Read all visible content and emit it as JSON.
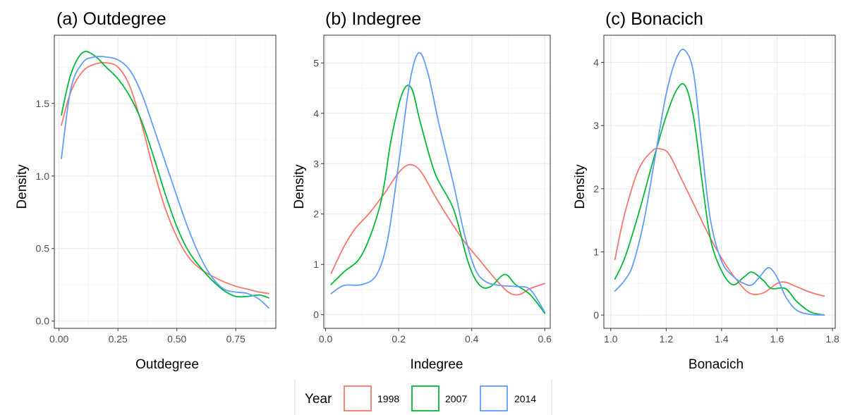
{
  "chart_data": [
    {
      "type": "line",
      "title": "(a) Outdegree",
      "xlabel": "Outdegree",
      "ylabel": "Density",
      "xlim": [
        -0.02,
        0.92
      ],
      "ylim": [
        -0.05,
        1.97
      ],
      "xticks": [
        0.0,
        0.25,
        0.5,
        0.75
      ],
      "xtick_labels": [
        "0.00",
        "0.25",
        "0.50",
        "0.75"
      ],
      "yticks": [
        0.0,
        0.5,
        1.0,
        1.5
      ],
      "ytick_labels": [
        "0.0",
        "0.5",
        "1.0",
        "1.5"
      ],
      "series": [
        {
          "name": "1998",
          "x": [
            0.01,
            0.05,
            0.1,
            0.15,
            0.2,
            0.25,
            0.3,
            0.35,
            0.4,
            0.45,
            0.5,
            0.55,
            0.6,
            0.65,
            0.7,
            0.75,
            0.8,
            0.85,
            0.89
          ],
          "y": [
            1.35,
            1.58,
            1.72,
            1.77,
            1.78,
            1.75,
            1.62,
            1.36,
            1.05,
            0.78,
            0.58,
            0.44,
            0.36,
            0.31,
            0.27,
            0.24,
            0.22,
            0.2,
            0.19
          ]
        },
        {
          "name": "2007",
          "x": [
            0.01,
            0.05,
            0.1,
            0.15,
            0.2,
            0.25,
            0.3,
            0.35,
            0.4,
            0.45,
            0.5,
            0.55,
            0.6,
            0.65,
            0.7,
            0.75,
            0.8,
            0.85,
            0.89
          ],
          "y": [
            1.42,
            1.7,
            1.85,
            1.83,
            1.75,
            1.67,
            1.55,
            1.38,
            1.14,
            0.88,
            0.65,
            0.48,
            0.37,
            0.28,
            0.21,
            0.17,
            0.17,
            0.18,
            0.16
          ]
        },
        {
          "name": "2014",
          "x": [
            0.01,
            0.05,
            0.1,
            0.15,
            0.2,
            0.25,
            0.3,
            0.35,
            0.4,
            0.45,
            0.5,
            0.55,
            0.6,
            0.65,
            0.7,
            0.75,
            0.8,
            0.85,
            0.89
          ],
          "y": [
            1.12,
            1.6,
            1.78,
            1.82,
            1.82,
            1.8,
            1.73,
            1.57,
            1.34,
            1.1,
            0.86,
            0.63,
            0.44,
            0.3,
            0.22,
            0.2,
            0.19,
            0.15,
            0.09
          ]
        }
      ]
    },
    {
      "type": "line",
      "title": "(b) Indegree",
      "xlabel": "Indegree",
      "ylabel": "Density",
      "xlim": [
        -0.005,
        0.615
      ],
      "ylim": [
        -0.27,
        5.55
      ],
      "xticks": [
        0.0,
        0.2,
        0.4,
        0.6
      ],
      "xtick_labels": [
        "0.0",
        "0.2",
        "0.4",
        "0.6"
      ],
      "yticks": [
        0,
        1,
        2,
        3,
        4,
        5
      ],
      "ytick_labels": [
        "0",
        "1",
        "2",
        "3",
        "4",
        "5"
      ],
      "series": [
        {
          "name": "1998",
          "x": [
            0.015,
            0.05,
            0.08,
            0.12,
            0.16,
            0.2,
            0.23,
            0.26,
            0.3,
            0.34,
            0.38,
            0.42,
            0.46,
            0.5,
            0.53,
            0.56,
            0.6
          ],
          "y": [
            0.82,
            1.35,
            1.7,
            2.02,
            2.4,
            2.82,
            2.98,
            2.85,
            2.35,
            1.88,
            1.45,
            1.1,
            0.75,
            0.45,
            0.4,
            0.52,
            0.62
          ]
        },
        {
          "name": "2007",
          "x": [
            0.015,
            0.05,
            0.1,
            0.15,
            0.18,
            0.21,
            0.235,
            0.26,
            0.3,
            0.35,
            0.39,
            0.42,
            0.45,
            0.49,
            0.52,
            0.56,
            0.6
          ],
          "y": [
            0.6,
            0.85,
            1.2,
            2.2,
            3.5,
            4.4,
            4.5,
            3.8,
            2.8,
            2.1,
            1.05,
            0.6,
            0.55,
            0.8,
            0.6,
            0.4,
            0.03
          ]
        },
        {
          "name": "2014",
          "x": [
            0.015,
            0.05,
            0.1,
            0.14,
            0.17,
            0.2,
            0.23,
            0.255,
            0.28,
            0.31,
            0.35,
            0.38,
            0.41,
            0.44,
            0.48,
            0.52,
            0.56,
            0.6
          ],
          "y": [
            0.42,
            0.58,
            0.6,
            0.8,
            1.5,
            3.0,
            4.6,
            5.2,
            4.8,
            3.8,
            2.6,
            1.6,
            0.9,
            0.65,
            0.58,
            0.56,
            0.5,
            0.05
          ]
        }
      ]
    },
    {
      "type": "line",
      "title": "(c) Bonacich",
      "xlabel": "Bonacich",
      "ylabel": "Density",
      "xlim": [
        0.975,
        1.81
      ],
      "ylim": [
        -0.21,
        4.43
      ],
      "xticks": [
        1.0,
        1.2,
        1.4,
        1.6,
        1.8
      ],
      "xtick_labels": [
        "1.0",
        "1.2",
        "1.4",
        "1.6",
        "1.8"
      ],
      "yticks": [
        0,
        1,
        2,
        3,
        4
      ],
      "ytick_labels": [
        "0",
        "1",
        "2",
        "3",
        "4"
      ],
      "series": [
        {
          "name": "1998",
          "x": [
            1.015,
            1.05,
            1.1,
            1.15,
            1.18,
            1.21,
            1.25,
            1.3,
            1.35,
            1.4,
            1.45,
            1.5,
            1.55,
            1.6,
            1.63,
            1.67,
            1.72,
            1.77
          ],
          "y": [
            0.88,
            1.6,
            2.3,
            2.6,
            2.63,
            2.55,
            2.2,
            1.75,
            1.3,
            0.9,
            0.58,
            0.35,
            0.35,
            0.5,
            0.52,
            0.45,
            0.36,
            0.3
          ]
        },
        {
          "name": "2007",
          "x": [
            1.015,
            1.05,
            1.1,
            1.15,
            1.2,
            1.24,
            1.27,
            1.3,
            1.33,
            1.36,
            1.4,
            1.44,
            1.48,
            1.51,
            1.55,
            1.58,
            1.63,
            1.67,
            1.72,
            1.77
          ],
          "y": [
            0.57,
            0.9,
            1.6,
            2.4,
            3.15,
            3.58,
            3.62,
            3.1,
            2.1,
            1.2,
            0.7,
            0.48,
            0.6,
            0.68,
            0.55,
            0.42,
            0.42,
            0.22,
            0.05,
            0.0
          ]
        },
        {
          "name": "2014",
          "x": [
            1.015,
            1.05,
            1.08,
            1.12,
            1.16,
            1.2,
            1.24,
            1.27,
            1.3,
            1.33,
            1.36,
            1.4,
            1.44,
            1.48,
            1.51,
            1.54,
            1.57,
            1.6,
            1.63,
            1.67,
            1.72,
            1.77
          ],
          "y": [
            0.38,
            0.55,
            0.8,
            1.5,
            2.5,
            3.5,
            4.1,
            4.18,
            3.8,
            2.6,
            1.5,
            0.85,
            0.62,
            0.5,
            0.48,
            0.62,
            0.75,
            0.6,
            0.3,
            0.08,
            0.01,
            0.0
          ]
        }
      ]
    }
  ],
  "legend": {
    "title": "Year",
    "items": [
      {
        "label": "1998",
        "color": "#F8766D"
      },
      {
        "label": "2007",
        "color": "#00BA38"
      },
      {
        "label": "2014",
        "color": "#619CFF"
      }
    ]
  },
  "colors": {
    "1998": "#F8766D",
    "2007": "#00BA38",
    "2014": "#619CFF",
    "grid_major": "#ebebeb",
    "grid_minor": "#f5f5f5",
    "panel_border": "#333333"
  }
}
